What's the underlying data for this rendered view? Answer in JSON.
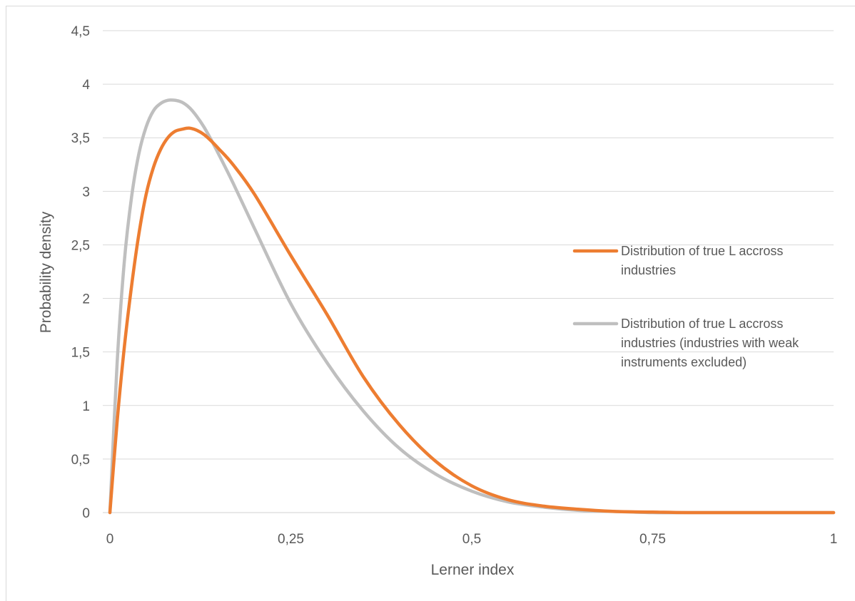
{
  "chart_data": {
    "type": "line",
    "title": "",
    "xlabel": "Lerner index",
    "ylabel": "Probability density",
    "xlim": [
      0,
      1
    ],
    "ylim": [
      0,
      4.5
    ],
    "x_ticks": [
      "0",
      "0,25",
      "0,5",
      "0,75",
      "1"
    ],
    "y_ticks": [
      "0",
      "0,5",
      "1",
      "1,5",
      "2",
      "2,5",
      "3",
      "3,5",
      "4",
      "4,5"
    ],
    "grid": true,
    "legend_position": "right",
    "series": [
      {
        "name": "Distribution of true L accross industries",
        "name_lines": [
          "Distribution of true L accross",
          "industries"
        ],
        "color": "#ED7D31",
        "x": [
          0,
          0.01,
          0.02,
          0.03,
          0.04,
          0.05,
          0.06,
          0.07,
          0.08,
          0.09,
          0.1,
          0.11,
          0.12,
          0.13,
          0.14,
          0.15,
          0.17,
          0.2,
          0.25,
          0.3,
          0.35,
          0.4,
          0.45,
          0.5,
          0.55,
          0.6,
          0.65,
          0.7,
          0.75,
          0.8,
          0.9,
          1.0
        ],
        "y": [
          0,
          0.85,
          1.55,
          2.12,
          2.6,
          2.97,
          3.22,
          3.39,
          3.5,
          3.56,
          3.58,
          3.59,
          3.57,
          3.53,
          3.47,
          3.4,
          3.25,
          2.97,
          2.4,
          1.85,
          1.27,
          0.82,
          0.48,
          0.25,
          0.12,
          0.06,
          0.03,
          0.01,
          0.005,
          0,
          0,
          0
        ]
      },
      {
        "name": "Distribution of true L accross industries (industries with weak instruments excluded)",
        "name_lines": [
          "Distribution of true L accross",
          "industries (industries with weak",
          "instruments excluded)"
        ],
        "color": "#BFBFBF",
        "x": [
          0,
          0.01,
          0.02,
          0.03,
          0.04,
          0.05,
          0.06,
          0.07,
          0.08,
          0.09,
          0.1,
          0.11,
          0.12,
          0.13,
          0.14,
          0.15,
          0.17,
          0.2,
          0.25,
          0.3,
          0.35,
          0.4,
          0.45,
          0.5,
          0.55,
          0.6,
          0.65,
          0.7,
          0.75,
          0.8,
          0.9,
          1.0
        ],
        "y": [
          0,
          1.4,
          2.35,
          2.95,
          3.35,
          3.6,
          3.75,
          3.82,
          3.85,
          3.85,
          3.83,
          3.78,
          3.7,
          3.6,
          3.48,
          3.35,
          3.08,
          2.65,
          1.95,
          1.4,
          0.95,
          0.6,
          0.36,
          0.2,
          0.1,
          0.05,
          0.02,
          0.01,
          0,
          0,
          0,
          0
        ]
      }
    ]
  }
}
